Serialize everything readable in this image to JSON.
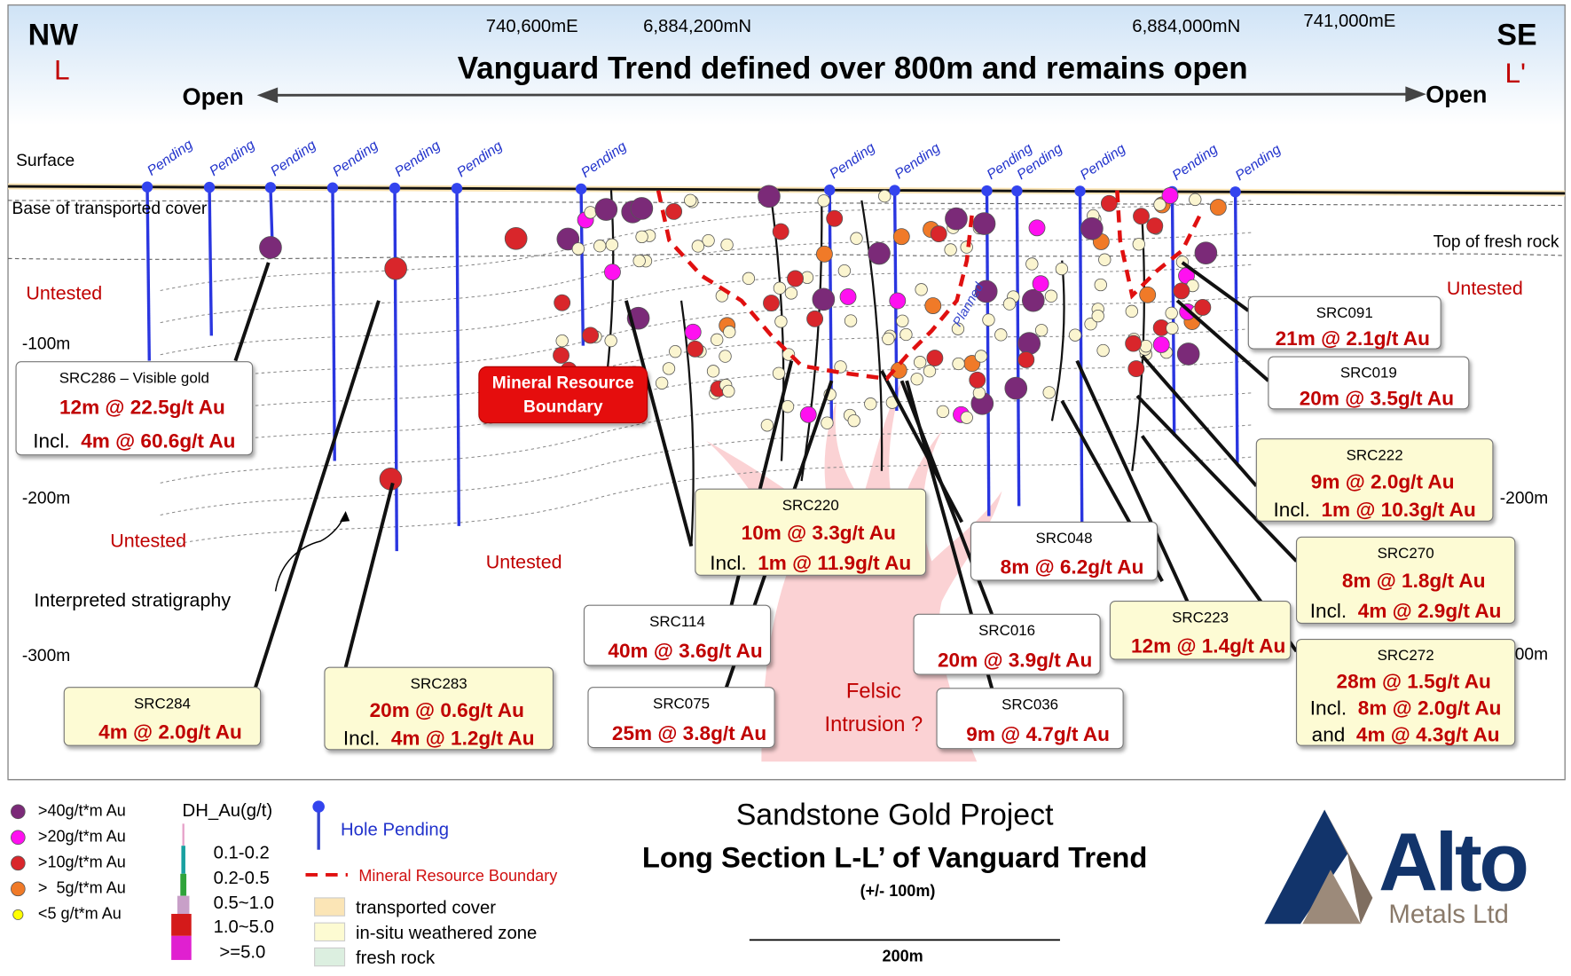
{
  "header": {
    "left_code": "NW",
    "left_marker": "L",
    "right_code": "SE",
    "right_marker": "L'",
    "coordinates": [
      "740,600mE",
      "6,884,200mN",
      "6,884,000mN",
      "741,000mE"
    ],
    "title": "Vanguard Trend defined over 800m and remains open",
    "open_left": "Open",
    "open_right": "Open"
  },
  "section": {
    "surface": "Surface",
    "base_cover": "Base of transported cover",
    "fresh_rock": "Top of fresh rock",
    "untested": [
      "Untested",
      "Untested",
      "Untested",
      "Untested"
    ],
    "stratigraphy": "Interpreted stratigraphy",
    "resource_boundary": [
      "Mineral Resource",
      "Boundary"
    ],
    "intrusion": [
      "Felsic",
      "Intrusion ?"
    ],
    "planned": "Planned",
    "depths_left": [
      "-100m",
      "-200m",
      "-300m"
    ],
    "depths_right": [
      "-200m",
      "00m"
    ],
    "pending": [
      "Pending",
      "Pending",
      "Pending",
      "Pending",
      "Pending",
      "Pending",
      "Pending",
      "Pending",
      "Pending",
      "Pending",
      "Pending",
      "Pending",
      "Pending",
      "Pending"
    ]
  },
  "callouts": [
    {
      "name": "SRC286 – Visible gold",
      "lines": [
        {
          "text": "12m @ 22.5g/t Au"
        },
        {
          "prefix": "Incl.",
          "text": "4m @ 60.6g/t Au"
        }
      ]
    },
    {
      "name": "SRC284",
      "lines": [
        {
          "text": "4m @ 2.0g/t Au"
        }
      ]
    },
    {
      "name": "SRC283",
      "lines": [
        {
          "text": "20m @ 0.6g/t Au"
        },
        {
          "prefix": "Incl.",
          "text": "4m @ 1.2g/t Au"
        }
      ]
    },
    {
      "name": "SRC114",
      "lines": [
        {
          "text": "40m @ 3.6g/t Au"
        }
      ]
    },
    {
      "name": "SRC075",
      "lines": [
        {
          "text": "25m @ 3.8g/t Au"
        }
      ]
    },
    {
      "name": "SRC220",
      "lines": [
        {
          "text": "10m @ 3.3g/t Au"
        },
        {
          "prefix": "Incl.",
          "text": "1m @ 11.9g/t Au"
        }
      ]
    },
    {
      "name": "SRC048",
      "lines": [
        {
          "text": "8m @ 6.2g/t Au"
        }
      ]
    },
    {
      "name": "SRC016",
      "lines": [
        {
          "text": "20m @ 3.9g/t Au"
        }
      ]
    },
    {
      "name": "SRC036",
      "lines": [
        {
          "text": "9m @ 4.7g/t Au"
        }
      ]
    },
    {
      "name": "SRC223",
      "lines": [
        {
          "text": "12m @ 1.4g/t Au"
        }
      ]
    },
    {
      "name": "SRC091",
      "lines": [
        {
          "text": "21m @ 2.1g/t Au"
        }
      ]
    },
    {
      "name": "SRC019",
      "lines": [
        {
          "text": "20m @ 3.5g/t Au"
        }
      ]
    },
    {
      "name": "SRC222",
      "lines": [
        {
          "text": "9m @ 2.0g/t Au"
        },
        {
          "prefix": "Incl.",
          "text": "1m @ 10.3g/t Au"
        }
      ]
    },
    {
      "name": "SRC270",
      "lines": [
        {
          "text": "8m @ 1.8g/t Au"
        },
        {
          "prefix": "Incl.",
          "text": "4m @ 2.9g/t Au"
        }
      ]
    },
    {
      "name": "SRC272",
      "lines": [
        {
          "text": "28m @ 1.5g/t Au"
        },
        {
          "prefix": "Incl.",
          "text": "8m @ 2.0g/t Au"
        },
        {
          "prefix": "and",
          "text": "4m @ 4.3g/t Au"
        }
      ]
    }
  ],
  "legend": {
    "grade_classes": [
      ">40g/t*m Au",
      ">20g/t*m Au",
      ">10g/t*m Au",
      ">  5g/t*m Au",
      "<5 g/t*m Au"
    ],
    "dh_title": "DH_Au(g/t)",
    "dh_classes": [
      "0.1-0.2",
      "0.2-0.5",
      "0.5~1.0",
      "1.0~5.0",
      ">=5.0"
    ],
    "hole_pending": "Hole Pending",
    "boundary": "Mineral Resource Boundary",
    "zones": [
      "transported cover",
      "in-situ weathered zone",
      "fresh rock"
    ]
  },
  "footer": {
    "project": "Sandstone Gold Project",
    "section_title": "Long Section L-L’ of Vanguard Trend",
    "width": "(+/- 100m)",
    "scale": "200m",
    "logo_main": "Alto",
    "logo_sub": "Metals Ltd"
  }
}
